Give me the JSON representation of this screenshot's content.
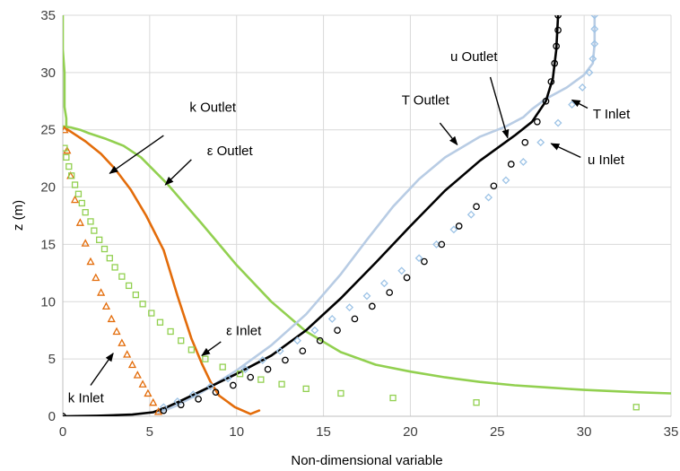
{
  "chart_data": {
    "type": "line",
    "title": "",
    "xlabel": "Non-dimensional variable",
    "ylabel": "z (m)",
    "xlim": [
      0,
      35
    ],
    "ylim": [
      0,
      35
    ],
    "xticks": [
      "0",
      "5",
      "10",
      "15",
      "20",
      "25",
      "30",
      "35"
    ],
    "yticks": [
      "0",
      "5",
      "10",
      "15",
      "20",
      "25",
      "30",
      "35"
    ],
    "grid": true,
    "legend": "none",
    "colors": {
      "k": "#e36c0a",
      "eps": "#92d050",
      "T": "#b8cce4",
      "u": "#000000",
      "grid": "#d9d9d9",
      "axis": "#bfbfbf"
    },
    "series": [
      {
        "name": "k Outlet",
        "color": "#e36c0a",
        "style": "line",
        "x": [
          11.3,
          10.8,
          9.9,
          9.0,
          8.5,
          8.0,
          7.4,
          6.6,
          5.8,
          4.8,
          3.9,
          3.0,
          2.2,
          1.3,
          0.5,
          0.1
        ],
        "y": [
          0.5,
          0.2,
          0.8,
          1.8,
          3.0,
          4.6,
          6.8,
          10.5,
          14.5,
          17.5,
          19.8,
          21.6,
          22.9,
          24.0,
          24.8,
          25.2
        ]
      },
      {
        "name": "k Inlet",
        "color": "#e36c0a",
        "style": "marker",
        "marker": "triangle",
        "x": [
          5.5,
          5.2,
          4.9,
          4.6,
          4.3,
          4.0,
          3.7,
          3.4,
          3.1,
          2.8,
          2.5,
          2.2,
          1.9,
          1.6,
          1.3,
          1.0,
          0.7,
          0.45,
          0.25,
          0.1
        ],
        "y": [
          0.4,
          1.2,
          2.0,
          2.8,
          3.6,
          4.5,
          5.4,
          6.4,
          7.4,
          8.5,
          9.6,
          10.8,
          12.1,
          13.5,
          15.1,
          16.9,
          18.9,
          21.0,
          23.2,
          25.0
        ]
      },
      {
        "name": "ε Outlet",
        "color": "#92d050",
        "style": "line",
        "x": [
          0,
          0.5,
          1.0,
          1.5,
          2.5,
          3.5,
          4.5,
          6.0,
          8.0,
          10.0,
          12.0,
          14.0,
          16.0,
          18.0,
          20.0,
          22.0,
          24.0,
          26.0,
          28.0,
          30.0,
          33.0,
          35.0
        ],
        "y": [
          25.3,
          25.2,
          25.0,
          24.7,
          24.2,
          23.6,
          22.6,
          20.3,
          16.8,
          13.2,
          10.0,
          7.4,
          5.6,
          4.5,
          3.9,
          3.4,
          3.0,
          2.7,
          2.5,
          2.3,
          2.1,
          2.0
        ],
        "extra": {
          "x": [
            0.0,
            0.0,
            0.1,
            0.1,
            0.1,
            0.2,
            0.2,
            0.2,
            0.2
          ],
          "y": [
            35.0,
            32.0,
            30.0,
            28.0,
            27.0,
            26.0,
            25.6,
            25.3,
            25.3
          ]
        }
      },
      {
        "name": "ε Inlet",
        "color": "#92d050",
        "style": "marker",
        "marker": "square",
        "x": [
          33.0,
          23.8,
          19.0,
          16.0,
          14.0,
          12.6,
          11.4,
          10.2,
          9.2,
          8.2,
          7.4,
          6.8,
          6.2,
          5.6,
          5.1,
          4.6,
          4.2,
          3.8,
          3.4,
          3.0,
          2.7,
          2.4,
          2.1,
          1.8,
          1.6,
          1.3,
          1.1,
          0.9,
          0.7,
          0.5,
          0.35,
          0.2,
          0.1
        ],
        "y": [
          0.8,
          1.2,
          1.6,
          2.0,
          2.4,
          2.8,
          3.2,
          3.7,
          4.3,
          5.0,
          5.8,
          6.6,
          7.4,
          8.2,
          9.0,
          9.8,
          10.6,
          11.4,
          12.2,
          13.0,
          13.8,
          14.6,
          15.4,
          16.2,
          17.0,
          17.8,
          18.6,
          19.4,
          20.2,
          21.0,
          21.8,
          22.6,
          23.4
        ]
      },
      {
        "name": "T Outlet",
        "color": "#b8cce4",
        "style": "line",
        "x": [
          5.5,
          6.5,
          8.0,
          10.0,
          12.0,
          14.0,
          16.0,
          17.5,
          19.0,
          20.5,
          22.0,
          24.0,
          25.5,
          26.5,
          27.0,
          27.8,
          29.0,
          30.0,
          30.5,
          30.6,
          30.6
        ],
        "y": [
          0.3,
          0.9,
          2.1,
          4.0,
          6.2,
          8.9,
          12.4,
          15.4,
          18.3,
          20.7,
          22.6,
          24.4,
          25.3,
          26.1,
          26.8,
          27.7,
          28.7,
          29.8,
          30.8,
          32.5,
          35.0
        ]
      },
      {
        "name": "T Inlet",
        "color": "#9dc3e6",
        "style": "marker",
        "marker": "diamond",
        "x": [
          5.8,
          6.6,
          7.5,
          8.5,
          9.5,
          10.5,
          11.5,
          12.5,
          13.5,
          14.5,
          15.5,
          16.5,
          17.5,
          18.5,
          19.5,
          20.5,
          21.5,
          22.5,
          23.5,
          24.5,
          25.5,
          26.5,
          27.5,
          28.5,
          29.3,
          29.9,
          30.3,
          30.5,
          30.6,
          30.6,
          30.6
        ],
        "y": [
          0.8,
          1.3,
          1.9,
          2.6,
          3.3,
          4.1,
          4.9,
          5.7,
          6.6,
          7.5,
          8.5,
          9.5,
          10.5,
          11.6,
          12.7,
          13.8,
          15.0,
          16.3,
          17.6,
          19.1,
          20.6,
          22.2,
          23.9,
          25.6,
          27.2,
          28.7,
          30.0,
          31.2,
          32.5,
          33.8,
          35.0
        ]
      },
      {
        "name": "u Outlet",
        "color": "#000000",
        "style": "line",
        "x": [
          0.0,
          2.0,
          4.0,
          5.2,
          6.0,
          7.0,
          8.5,
          10.0,
          12.0,
          14.0,
          16.0,
          18.0,
          20.0,
          22.0,
          24.0,
          26.0,
          27.0,
          27.8,
          28.2,
          28.4,
          28.5
        ],
        "y": [
          0.0,
          0.05,
          0.15,
          0.35,
          0.8,
          1.5,
          2.6,
          3.7,
          5.3,
          7.5,
          10.3,
          13.4,
          16.6,
          19.7,
          22.3,
          24.5,
          25.7,
          27.5,
          29.5,
          32.0,
          35.0
        ]
      },
      {
        "name": "u Inlet",
        "color": "#000000",
        "style": "marker",
        "marker": "circle",
        "x": [
          0.0,
          5.8,
          6.8,
          7.8,
          8.8,
          9.8,
          10.8,
          11.8,
          12.8,
          13.8,
          14.8,
          15.8,
          16.8,
          17.8,
          18.8,
          19.8,
          20.8,
          21.8,
          22.8,
          23.8,
          24.8,
          25.8,
          26.6,
          27.3,
          27.8,
          28.1,
          28.3,
          28.4,
          28.5,
          28.5
        ],
        "y": [
          0.0,
          0.5,
          1.0,
          1.5,
          2.1,
          2.7,
          3.4,
          4.1,
          4.9,
          5.7,
          6.6,
          7.5,
          8.5,
          9.6,
          10.8,
          12.1,
          13.5,
          15.0,
          16.6,
          18.3,
          20.1,
          22.0,
          23.9,
          25.7,
          27.5,
          29.2,
          30.8,
          32.3,
          33.7,
          35.0
        ]
      }
    ],
    "annotations": [
      {
        "text": "k Outlet",
        "label_x": 7.3,
        "label_y": 26.6,
        "arrow_from": [
          5.8,
          24.5
        ],
        "arrow_to": [
          2.7,
          21.2
        ]
      },
      {
        "text": "ε Outlet",
        "label_x": 8.3,
        "label_y": 22.8,
        "arrow_from": [
          7.4,
          22.4
        ],
        "arrow_to": [
          5.9,
          20.2
        ]
      },
      {
        "text": "T Outlet",
        "label_x": 19.5,
        "label_y": 27.2,
        "arrow_from": [
          21.7,
          25.6
        ],
        "arrow_to": [
          22.7,
          23.7
        ]
      },
      {
        "text": "u Outlet",
        "label_x": 22.3,
        "label_y": 31.0,
        "arrow_from": [
          24.6,
          29.6
        ],
        "arrow_to": [
          25.6,
          24.3
        ]
      },
      {
        "text": "T Inlet",
        "label_x": 30.5,
        "label_y": 26.0,
        "arrow_from": [
          30.2,
          26.9
        ],
        "arrow_to": [
          29.3,
          27.6
        ]
      },
      {
        "text": "u Inlet",
        "label_x": 30.2,
        "label_y": 22.0,
        "arrow_from": [
          29.8,
          22.6
        ],
        "arrow_to": [
          28.1,
          23.8
        ]
      },
      {
        "text": "ε Inlet",
        "label_x": 9.4,
        "label_y": 7.1,
        "arrow_from": [
          9.1,
          6.5
        ],
        "arrow_to": [
          8.0,
          5.3
        ]
      },
      {
        "text": "k Inlet",
        "label_x": 0.3,
        "label_y": 1.2,
        "arrow_from": [
          1.6,
          2.7
        ],
        "arrow_to": [
          2.9,
          5.5
        ]
      }
    ]
  }
}
